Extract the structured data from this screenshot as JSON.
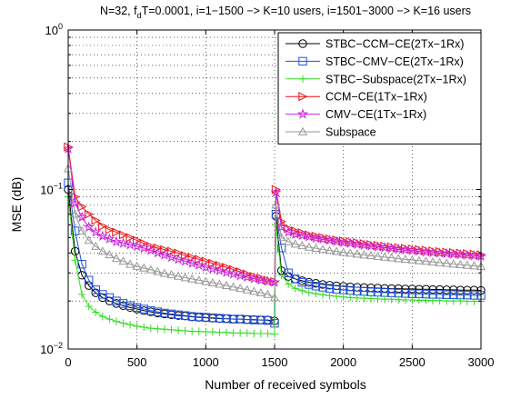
{
  "chart_data": {
    "type": "line",
    "title_prefix": "N=32, f",
    "title_sub": "d",
    "title_suffix": "T=0.0001, i=1−1500 −> K=10 users, i=1501−3000 −> K=16 users",
    "xlabel": "Number of received symbols",
    "ylabel": "MSE (dB)",
    "xlim": [
      0,
      3000
    ],
    "ylim": [
      0.01,
      1
    ],
    "yscale": "log",
    "grid": true,
    "legend_position": "top-right",
    "x_ticks": [
      {
        "value": 0,
        "label": "0"
      },
      {
        "value": 500,
        "label": "500"
      },
      {
        "value": 1000,
        "label": "1000"
      },
      {
        "value": 1500,
        "label": "1500"
      },
      {
        "value": 2000,
        "label": "2000"
      },
      {
        "value": 2500,
        "label": "2500"
      },
      {
        "value": 3000,
        "label": "3000"
      }
    ],
    "y_ticks": [
      {
        "value": 0.01,
        "base": "10",
        "exp": "−2"
      },
      {
        "value": 0.1,
        "base": "10",
        "exp": "−1"
      },
      {
        "value": 1,
        "base": "10",
        "exp": "0"
      }
    ],
    "marker_x": [
      0,
      50,
      100,
      150,
      200,
      250,
      300,
      350,
      400,
      450,
      500,
      550,
      600,
      650,
      700,
      750,
      800,
      850,
      900,
      950,
      1000,
      1050,
      1100,
      1150,
      1200,
      1250,
      1300,
      1350,
      1400,
      1450,
      1500,
      1510,
      1550,
      1600,
      1650,
      1700,
      1750,
      1800,
      1850,
      1900,
      1950,
      2000,
      2050,
      2100,
      2150,
      2200,
      2250,
      2300,
      2350,
      2400,
      2450,
      2500,
      2550,
      2600,
      2650,
      2700,
      2750,
      2800,
      2850,
      2900,
      2950,
      3000
    ],
    "series": [
      {
        "name": "STBC−CCM−CE(2Tx−1Rx)",
        "color": "#000000",
        "marker": "circle",
        "values": [
          0.1,
          0.041,
          0.029,
          0.025,
          0.0225,
          0.021,
          0.02,
          0.0193,
          0.0187,
          0.0182,
          0.0178,
          0.0174,
          0.0171,
          0.0168,
          0.0166,
          0.0164,
          0.0162,
          0.0161,
          0.0159,
          0.0158,
          0.0157,
          0.0156,
          0.0155,
          0.0155,
          0.0154,
          0.0154,
          0.0153,
          0.0153,
          0.0152,
          0.0152,
          0.015,
          0.068,
          0.031,
          0.0285,
          0.0275,
          0.0268,
          0.0262,
          0.0258,
          0.0254,
          0.0251,
          0.0249,
          0.0247,
          0.0245,
          0.0244,
          0.0243,
          0.0242,
          0.0241,
          0.024,
          0.0239,
          0.0239,
          0.0238,
          0.0238,
          0.0237,
          0.0237,
          0.0236,
          0.0236,
          0.0235,
          0.0235,
          0.0234,
          0.0234,
          0.0234,
          0.0233
        ]
      },
      {
        "name": "STBC−CMV−CE(2Tx−1Rx)",
        "color": "#1f4fe0",
        "marker": "square",
        "values": [
          0.11,
          0.055,
          0.034,
          0.027,
          0.0235,
          0.022,
          0.021,
          0.02,
          0.0193,
          0.0187,
          0.0182,
          0.0178,
          0.0174,
          0.0171,
          0.0168,
          0.0166,
          0.0164,
          0.0162,
          0.016,
          0.0159,
          0.0158,
          0.0157,
          0.0156,
          0.0155,
          0.0154,
          0.0154,
          0.0153,
          0.0152,
          0.0152,
          0.0151,
          0.0145,
          0.07,
          0.043,
          0.03,
          0.0275,
          0.0262,
          0.0254,
          0.0248,
          0.0244,
          0.024,
          0.0237,
          0.0235,
          0.0233,
          0.0231,
          0.023,
          0.0228,
          0.0227,
          0.0226,
          0.0225,
          0.0224,
          0.0223,
          0.0222,
          0.0222,
          0.0221,
          0.022,
          0.022,
          0.0219,
          0.0219,
          0.0218,
          0.0218,
          0.0217,
          0.0217
        ]
      },
      {
        "name": "STBC−Subspace(2Tx−1Rx)",
        "color": "#33dd22",
        "marker": "plus",
        "values": [
          0.09,
          0.036,
          0.022,
          0.0185,
          0.017,
          0.016,
          0.0154,
          0.0149,
          0.0145,
          0.0142,
          0.0139,
          0.0137,
          0.0135,
          0.0134,
          0.0133,
          0.0132,
          0.0131,
          0.013,
          0.0129,
          0.0129,
          0.0128,
          0.0128,
          0.0127,
          0.0127,
          0.0126,
          0.0126,
          0.0126,
          0.0125,
          0.0125,
          0.0125,
          0.0124,
          0.06,
          0.029,
          0.0255,
          0.024,
          0.0232,
          0.0226,
          0.0222,
          0.0219,
          0.0216,
          0.0214,
          0.0212,
          0.021,
          0.0209,
          0.0208,
          0.0207,
          0.0206,
          0.0205,
          0.0205,
          0.0204,
          0.0203,
          0.0203,
          0.0202,
          0.0202,
          0.0201,
          0.0201,
          0.02,
          0.02,
          0.02,
          0.0199,
          0.0199,
          0.0199
        ]
      },
      {
        "name": "CCM−CE(1Tx−1Rx)",
        "color": "#ee1111",
        "marker": "triangle-right",
        "values": [
          0.185,
          0.09,
          0.078,
          0.07,
          0.064,
          0.059,
          0.056,
          0.054,
          0.052,
          0.05,
          0.048,
          0.046,
          0.044,
          0.043,
          0.042,
          0.041,
          0.04,
          0.0385,
          0.0375,
          0.0365,
          0.0355,
          0.0345,
          0.0335,
          0.0325,
          0.0315,
          0.0305,
          0.0295,
          0.0285,
          0.0278,
          0.027,
          0.0265,
          0.1,
          0.063,
          0.057,
          0.055,
          0.0535,
          0.052,
          0.051,
          0.05,
          0.049,
          0.0483,
          0.0476,
          0.047,
          0.0464,
          0.0458,
          0.0452,
          0.0447,
          0.0442,
          0.0437,
          0.0432,
          0.0428,
          0.0424,
          0.042,
          0.0416,
          0.0412,
          0.0408,
          0.0405,
          0.0402,
          0.0399,
          0.0396,
          0.0393,
          0.039
        ]
      },
      {
        "name": "CMV−CE(1Tx−1Rx)",
        "color": "#cc22dd",
        "marker": "star",
        "values": [
          0.18,
          0.082,
          0.067,
          0.058,
          0.054,
          0.051,
          0.049,
          0.047,
          0.046,
          0.045,
          0.044,
          0.043,
          0.0415,
          0.04,
          0.0388,
          0.0376,
          0.0365,
          0.0355,
          0.0345,
          0.0335,
          0.0326,
          0.0318,
          0.031,
          0.0302,
          0.0295,
          0.0288,
          0.0282,
          0.0276,
          0.027,
          0.0265,
          0.0262,
          0.096,
          0.058,
          0.054,
          0.0525,
          0.0515,
          0.0505,
          0.0495,
          0.0488,
          0.048,
          0.0472,
          0.0465,
          0.0459,
          0.0453,
          0.0447,
          0.0442,
          0.0437,
          0.0432,
          0.0427,
          0.0422,
          0.0418,
          0.0414,
          0.041,
          0.0406,
          0.0402,
          0.0399,
          0.0396,
          0.0393,
          0.039,
          0.0387,
          0.0384,
          0.0381
        ]
      },
      {
        "name": "Subspace",
        "color": "#999999",
        "marker": "triangle-up",
        "values": [
          0.135,
          0.07,
          0.055,
          0.048,
          0.044,
          0.041,
          0.039,
          0.037,
          0.0355,
          0.034,
          0.033,
          0.0322,
          0.0314,
          0.0306,
          0.0298,
          0.0292,
          0.0286,
          0.028,
          0.0275,
          0.027,
          0.0265,
          0.026,
          0.0255,
          0.025,
          0.0245,
          0.024,
          0.0235,
          0.023,
          0.0225,
          0.022,
          0.021,
          0.08,
          0.05,
          0.047,
          0.0455,
          0.0445,
          0.0435,
          0.0428,
          0.0421,
          0.0415,
          0.0409,
          0.0404,
          0.0399,
          0.0394,
          0.0389,
          0.0385,
          0.0381,
          0.0377,
          0.0373,
          0.0369,
          0.0365,
          0.0362,
          0.0358,
          0.0355,
          0.0351,
          0.0348,
          0.0345,
          0.0341,
          0.0338,
          0.0335,
          0.0332,
          0.0329
        ]
      }
    ]
  }
}
